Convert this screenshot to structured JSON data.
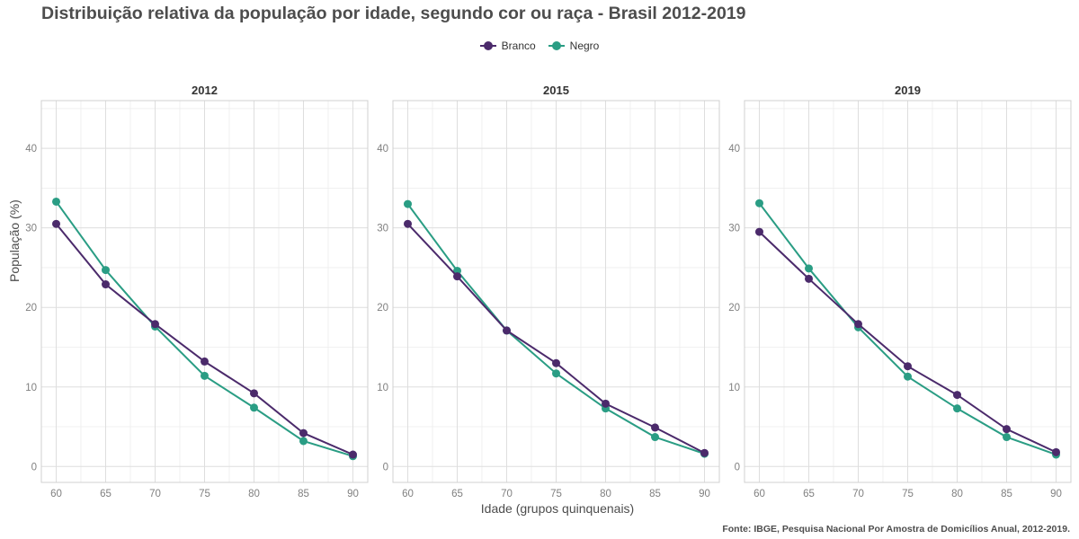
{
  "title": "Distribuição relativa da população por idade, segundo cor ou raça - Brasil 2012-2019",
  "legend": {
    "items": [
      {
        "label": "Branco",
        "color": "#4b2a6b"
      },
      {
        "label": "Negro",
        "color": "#2a9d84"
      }
    ]
  },
  "ylabel": "População (%)",
  "xlabel": "Idade (grupos quinquenais)",
  "caption": "Fonte: IBGE, Pesquisa Nacional Por Amostra de Domicílios Anual, 2012-2019.",
  "chart_data": {
    "type": "line",
    "x": [
      60,
      65,
      70,
      75,
      80,
      85,
      90
    ],
    "x_ticks": [
      "60",
      "65",
      "70",
      "75",
      "80",
      "85",
      "90"
    ],
    "y_ticks": [
      "0",
      "10",
      "20",
      "30",
      "40"
    ],
    "ylim": [
      -2,
      46
    ],
    "grid": true,
    "legend_position": "top",
    "panels": [
      {
        "label": "2012",
        "series": [
          {
            "name": "Branco",
            "values": [
              30.5,
              22.9,
              17.9,
              13.2,
              9.2,
              4.2,
              1.5
            ]
          },
          {
            "name": "Negro",
            "values": [
              33.3,
              24.7,
              17.6,
              11.4,
              7.4,
              3.2,
              1.3
            ]
          }
        ]
      },
      {
        "label": "2015",
        "series": [
          {
            "name": "Branco",
            "values": [
              30.5,
              23.9,
              17.1,
              13.0,
              7.9,
              4.9,
              1.7
            ]
          },
          {
            "name": "Negro",
            "values": [
              33.0,
              24.6,
              17.1,
              11.7,
              7.3,
              3.7,
              1.6
            ]
          }
        ]
      },
      {
        "label": "2019",
        "series": [
          {
            "name": "Branco",
            "values": [
              29.5,
              23.6,
              17.9,
              12.6,
              9.0,
              4.7,
              1.8
            ]
          },
          {
            "name": "Negro",
            "values": [
              33.1,
              24.9,
              17.5,
              11.3,
              7.3,
              3.7,
              1.5
            ]
          }
        ]
      }
    ]
  }
}
